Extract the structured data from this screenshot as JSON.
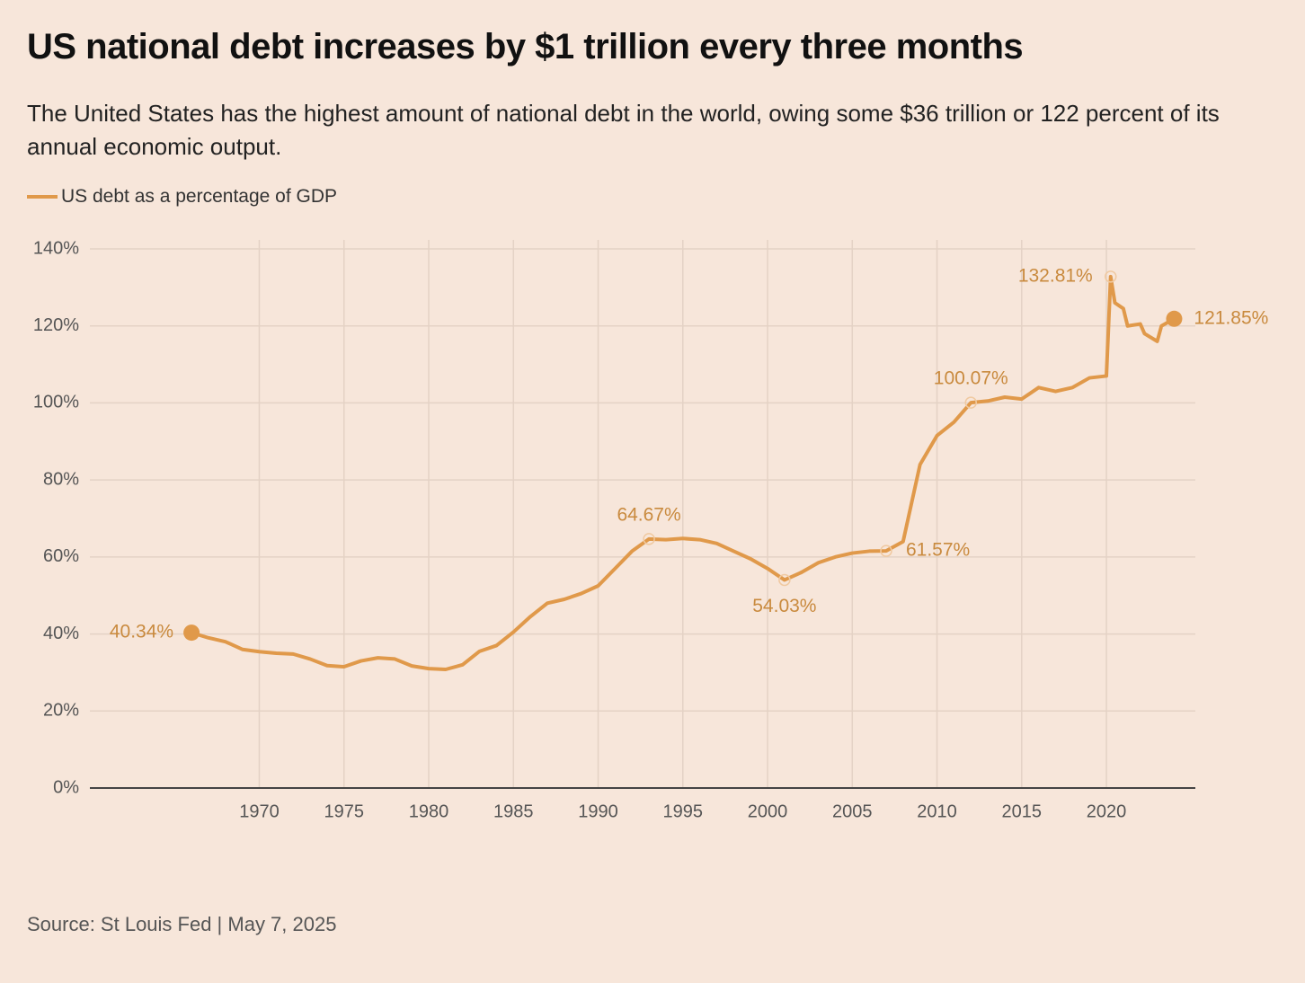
{
  "chart_data": {
    "type": "line",
    "title": "US national debt increases by $1 trillion every three months",
    "subtitle": "The United States has the highest amount of national debt in the world, owing some $36 trillion or 122 percent of its annual economic output.",
    "source": "Source: St Louis Fed | May 7, 2025",
    "grid": true,
    "x": [
      1966,
      1967,
      1968,
      1969,
      1970,
      1971,
      1972,
      1973,
      1974,
      1975,
      1976,
      1977,
      1978,
      1979,
      1980,
      1981,
      1982,
      1983,
      1984,
      1985,
      1986,
      1987,
      1988,
      1989,
      1990,
      1991,
      1992,
      1993,
      1994,
      1995,
      1996,
      1997,
      1998,
      1999,
      2000,
      2001,
      2002,
      2003,
      2004,
      2005,
      2006,
      2007,
      2008,
      2008.5,
      2009,
      2010,
      2011,
      2012,
      2013,
      2014,
      2015,
      2016,
      2017,
      2018,
      2019,
      2020,
      2020.25,
      2020.5,
      2021,
      2021.25,
      2022,
      2022.25,
      2023,
      2023.25,
      2024
    ],
    "series": [
      {
        "name": "US debt as a percentage of GDP",
        "color": "#e0994a",
        "values": [
          40.34,
          39,
          38,
          36,
          35.4,
          35,
          34.8,
          33.5,
          31.8,
          31.5,
          33,
          33.8,
          33.5,
          31.7,
          31,
          30.8,
          32,
          35.5,
          37,
          40.5,
          44.5,
          48,
          49,
          50.5,
          52.5,
          57,
          61.5,
          64.67,
          64.5,
          64.8,
          64.5,
          63.5,
          61.5,
          59.5,
          57,
          54.03,
          56,
          58.5,
          60,
          61,
          61.5,
          61.57,
          64,
          74,
          84,
          91.5,
          95,
          100.07,
          100.5,
          101.5,
          101,
          104,
          103,
          104,
          106.5,
          107,
          132.81,
          126,
          124.5,
          120,
          120.5,
          118,
          116,
          120,
          121.85
        ],
        "value_labels": [
          "40.34%",
          null,
          null,
          null,
          null,
          null,
          null,
          null,
          null,
          null,
          null,
          null,
          null,
          null,
          null,
          null,
          null,
          null,
          null,
          null,
          null,
          null,
          null,
          null,
          null,
          null,
          null,
          "64.67%",
          null,
          null,
          null,
          null,
          null,
          null,
          null,
          "54.03%",
          null,
          null,
          null,
          null,
          null,
          "61.57%",
          null,
          null,
          null,
          null,
          null,
          "100.07%",
          null,
          null,
          null,
          null,
          null,
          null,
          null,
          null,
          "132.81%",
          null,
          null,
          null,
          null,
          null,
          null,
          null,
          "121.85%"
        ]
      }
    ],
    "xlim": [
      1960,
      2025.25
    ],
    "xticks": [
      1970,
      1975,
      1980,
      1985,
      1990,
      1995,
      2000,
      2005,
      2010,
      2015,
      2020
    ],
    "ylim": [
      0,
      140
    ],
    "yticks": [
      {
        "value": 0,
        "label": "0%"
      },
      {
        "value": 20,
        "label": "20%"
      },
      {
        "value": 40,
        "label": "40%"
      },
      {
        "value": 60,
        "label": "60%"
      },
      {
        "value": 80,
        "label": "80%"
      },
      {
        "value": 100,
        "label": "100%"
      },
      {
        "value": 120,
        "label": "120%"
      },
      {
        "value": 140,
        "label": "140%"
      }
    ]
  }
}
